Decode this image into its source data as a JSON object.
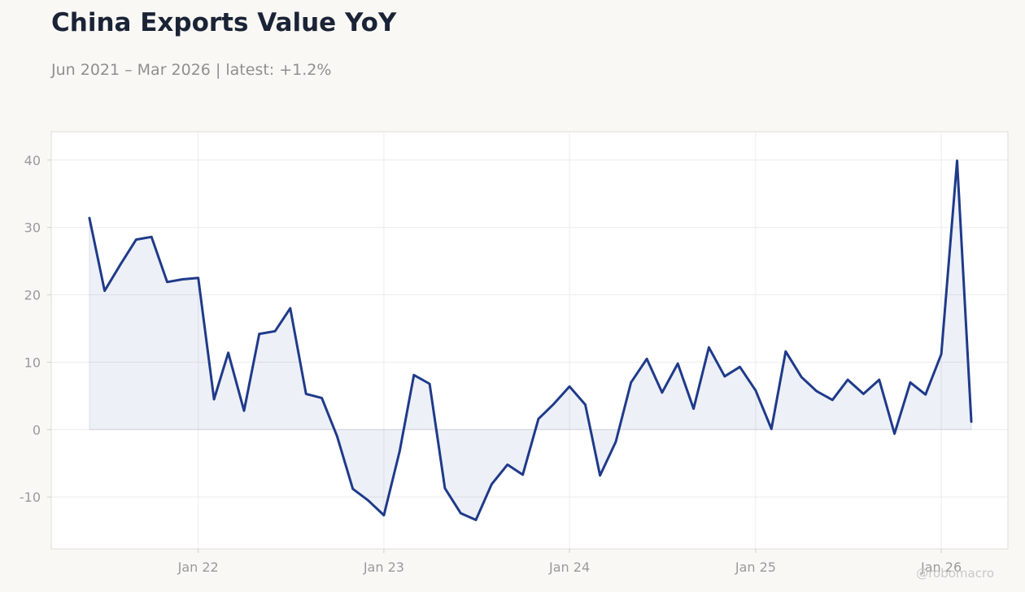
{
  "header": {
    "title": "China Exports Value YoY",
    "subtitle": "Jun 2021 – Mar 2026 | latest: +1.2%"
  },
  "watermark": "@robomacro",
  "colors": {
    "line": "#1f3a8a",
    "fill": "#1f3a8a",
    "grid": "#ececec",
    "frame": "#dcdcd6",
    "plot_bg": "#ffffff",
    "page_bg": "#f9f8f5"
  },
  "chart_data": {
    "type": "area",
    "title": "China Exports Value YoY",
    "subtitle": "Jun 2021 – Mar 2026 | latest: +1.2%",
    "xlabel": "",
    "ylabel": "",
    "ylim": [
      -17.7,
      44.2
    ],
    "xlim": [
      "2021-03-18",
      "2026-05-12"
    ],
    "grid": true,
    "legend": "none",
    "x_ticks": [
      {
        "date": "2022-01-01",
        "label": "Jan 22"
      },
      {
        "date": "2023-01-01",
        "label": "Jan 23"
      },
      {
        "date": "2024-01-01",
        "label": "Jan 24"
      },
      {
        "date": "2025-01-01",
        "label": "Jan 25"
      },
      {
        "date": "2026-01-01",
        "label": "Jan 26"
      }
    ],
    "y_ticks": [
      -10,
      0,
      10,
      20,
      30,
      40
    ],
    "series": [
      {
        "x": [
          "2021-06",
          "2021-07",
          "2021-08",
          "2021-09",
          "2021-10",
          "2021-11",
          "2021-12",
          "2022-01",
          "2022-02",
          "2022-03",
          "2022-04",
          "2022-05",
          "2022-06",
          "2022-07",
          "2022-08",
          "2022-09",
          "2022-10",
          "2022-11",
          "2022-12",
          "2023-01",
          "2023-02",
          "2023-03",
          "2023-04",
          "2023-05",
          "2023-06",
          "2023-07",
          "2023-08",
          "2023-09",
          "2023-10",
          "2023-11",
          "2023-12",
          "2024-01",
          "2024-02",
          "2024-03",
          "2024-04",
          "2024-05",
          "2024-06",
          "2024-07",
          "2024-08",
          "2024-09",
          "2024-10",
          "2024-11",
          "2024-12",
          "2025-01",
          "2025-02",
          "2025-03",
          "2025-04",
          "2025-05",
          "2025-06",
          "2025-07",
          "2025-08",
          "2025-09",
          "2025-10",
          "2025-11",
          "2025-12",
          "2026-01",
          "2026-02",
          "2026-03"
        ],
        "y": [
          31.4,
          20.6,
          24.5,
          28.2,
          28.6,
          21.9,
          22.3,
          22.5,
          4.5,
          11.4,
          2.8,
          14.2,
          14.6,
          18.0,
          5.3,
          4.7,
          -1.0,
          -8.8,
          -10.5,
          -12.7,
          -3.2,
          8.1,
          6.8,
          -8.7,
          -12.4,
          -13.4,
          -8.1,
          -5.2,
          -6.7,
          1.6,
          3.8,
          6.4,
          3.7,
          -6.8,
          -1.8,
          7.0,
          10.5,
          5.5,
          9.8,
          3.1,
          12.2,
          7.9,
          9.3,
          5.8,
          0.1,
          11.6,
          7.8,
          5.7,
          4.4,
          7.4,
          5.3,
          7.4,
          -0.6,
          7.0,
          5.2,
          11.2,
          39.9,
          1.2
        ]
      }
    ]
  }
}
